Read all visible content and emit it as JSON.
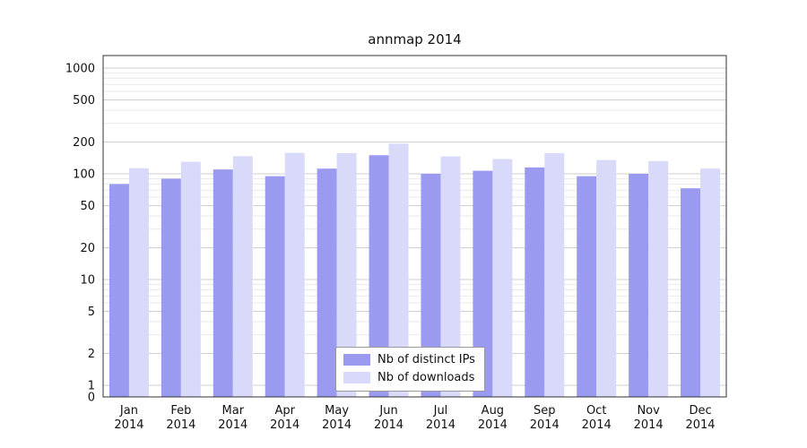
{
  "chart_data": {
    "type": "bar",
    "title": "annmap 2014",
    "categories": [
      "Jan",
      "Feb",
      "Mar",
      "Apr",
      "May",
      "Jun",
      "Jul",
      "Aug",
      "Sep",
      "Oct",
      "Nov",
      "Dec"
    ],
    "category_year": "2014",
    "series": [
      {
        "name": "Nb of distinct IPs",
        "color": "#9a9af0",
        "values": [
          80,
          90,
          110,
          95,
          112,
          150,
          100,
          107,
          115,
          95,
          100,
          73
        ]
      },
      {
        "name": "Nb of downloads",
        "color": "#d9d9f9",
        "values": [
          113,
          130,
          147,
          158,
          157,
          193,
          146,
          138,
          157,
          135,
          132,
          112
        ]
      }
    ],
    "yscale": "symlog",
    "ylim": [
      0,
      1000
    ],
    "yticks": [
      1000,
      500,
      200,
      100,
      50,
      20,
      10,
      5,
      2,
      1,
      0
    ],
    "minor_gridlines": [
      900,
      800,
      700,
      600,
      400,
      300,
      90,
      80,
      70,
      60,
      40,
      30,
      9,
      8,
      7,
      6,
      4,
      3
    ],
    "grid": true,
    "legend_position": "lower center",
    "axis_color": "#333333",
    "major_grid_color": "#cfcfcf",
    "minor_grid_color": "#e9e9e9",
    "text_color": "#111111"
  }
}
